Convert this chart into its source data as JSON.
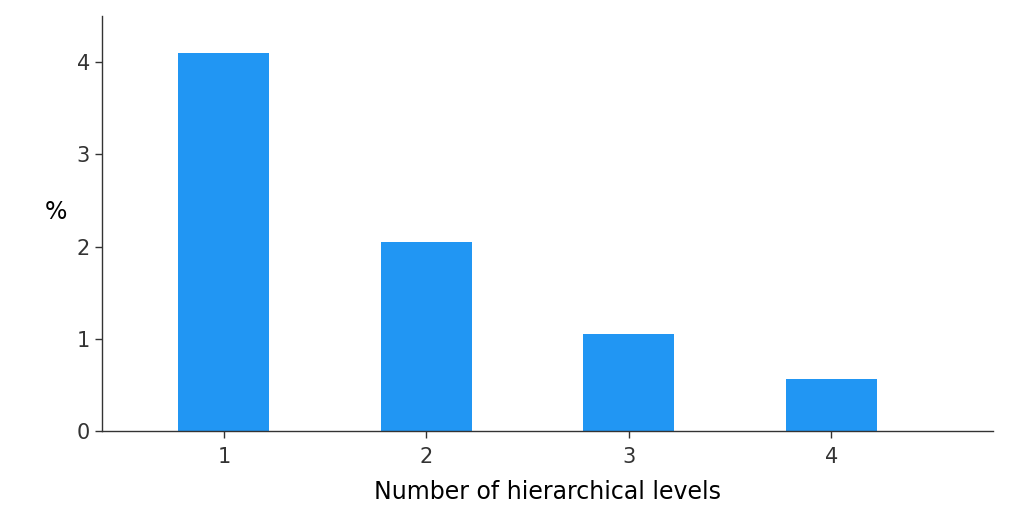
{
  "categories": [
    1,
    2,
    3,
    4
  ],
  "values": [
    4.1,
    2.05,
    1.05,
    0.57
  ],
  "bar_color": "#2196F3",
  "xlabel": "Number of hierarchical levels",
  "ylabel": "%",
  "ylim": [
    0,
    4.5
  ],
  "yticks": [
    0,
    1,
    2,
    3,
    4
  ],
  "background_color": "#ffffff",
  "xlabel_fontsize": 17,
  "ylabel_fontsize": 17,
  "tick_fontsize": 15,
  "bar_width": 0.45
}
